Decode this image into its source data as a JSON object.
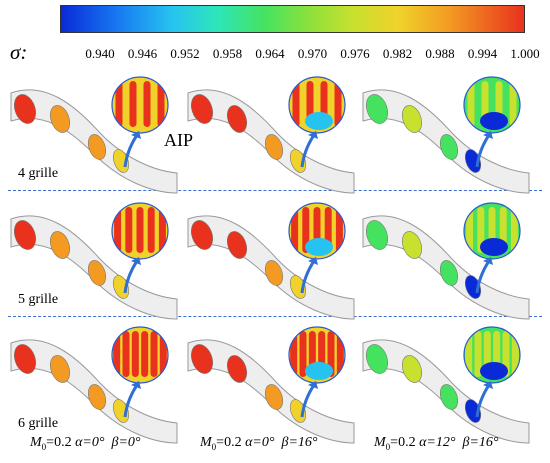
{
  "legend": {
    "symbol": "σ:",
    "ticks": [
      "0.940",
      "0.946",
      "0.952",
      "0.958",
      "0.964",
      "0.970",
      "0.976",
      "0.982",
      "0.988",
      "0.994",
      "1.000"
    ],
    "colors": [
      "#0a2ad8",
      "#1777f0",
      "#27c3f0",
      "#2ee6b8",
      "#45e260",
      "#8fe13a",
      "#c8e02e",
      "#f0d22a",
      "#f39a22",
      "#e9321e"
    ]
  },
  "annotation": {
    "aip": "AIP"
  },
  "rows": [
    {
      "label": "4 grille"
    },
    {
      "label": "5 grille"
    },
    {
      "label": "6 grille"
    }
  ],
  "captions": [
    {
      "mach_symbol": "M",
      "mach_sub": "0",
      "mach_value": "=0.2",
      "alpha": "α=0°",
      "beta": "β=0°"
    },
    {
      "mach_symbol": "M",
      "mach_sub": "0",
      "mach_value": "=0.2",
      "alpha": "α=0°",
      "beta": "β=16°"
    },
    {
      "mach_symbol": "M",
      "mach_sub": "0",
      "mach_value": "=0.2",
      "alpha": "α=12°",
      "beta": "β=16°"
    }
  ]
}
